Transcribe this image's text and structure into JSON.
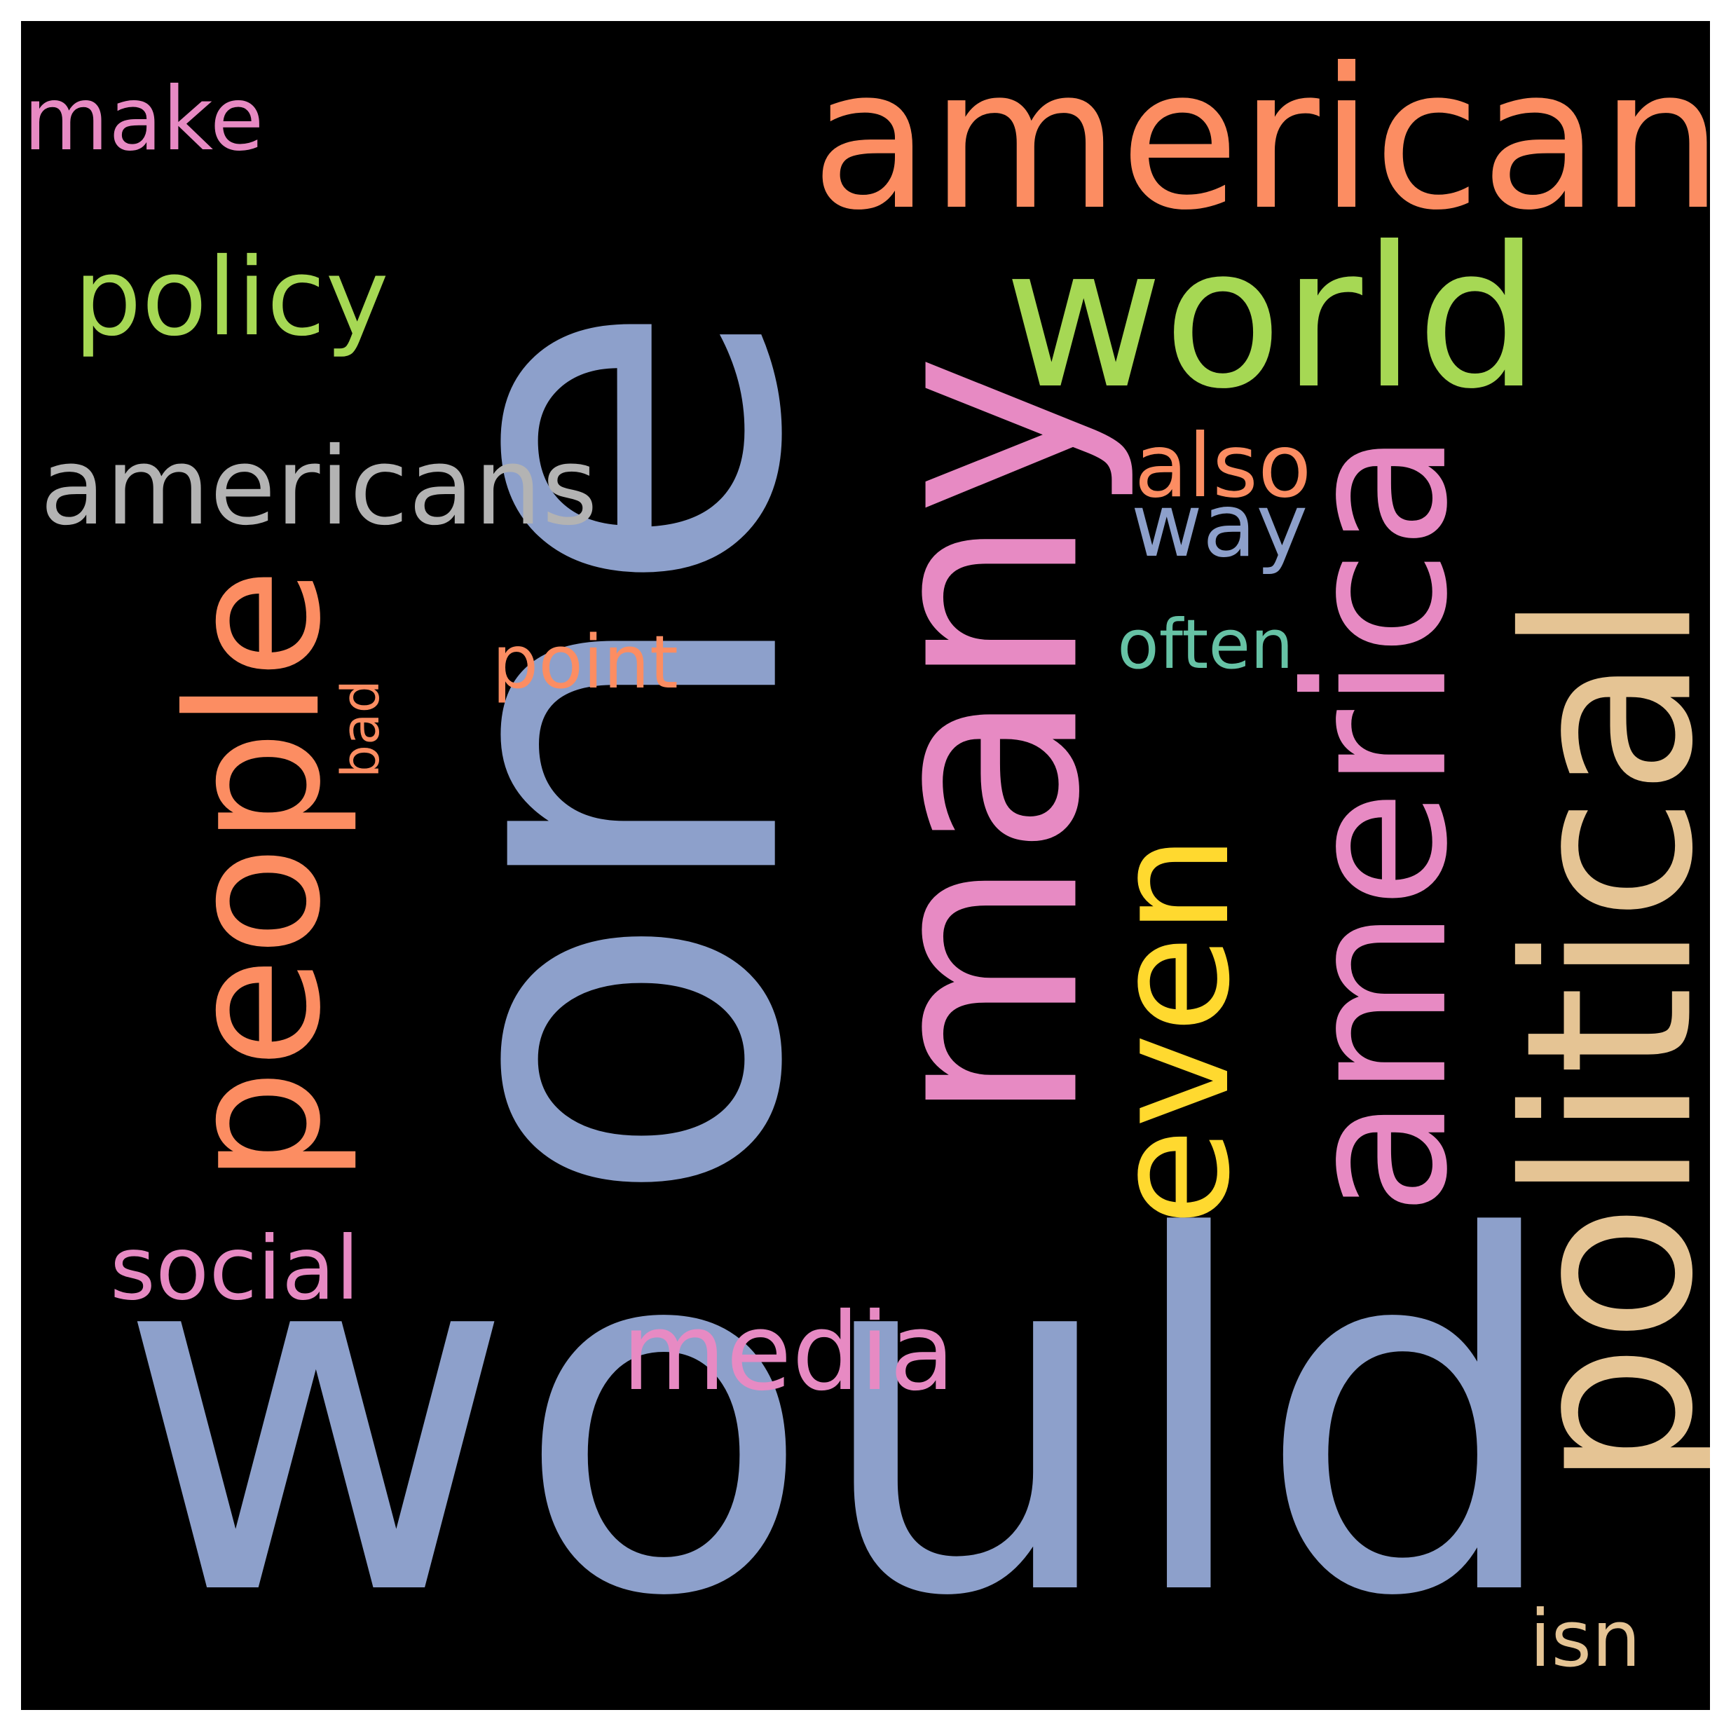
{
  "palette": {
    "background": "#000000",
    "frame": "#ffffff",
    "blue": "#8da0cb",
    "pink": "#e78ac3",
    "orange": "#fc8d62",
    "green": "#a6d854",
    "yellow": "#ffd92f",
    "tan": "#e5c494",
    "gray": "#b3b3b3",
    "teal": "#66c2a5"
  },
  "words": [
    {
      "id": "one",
      "text": "one",
      "color": "#8da0cb",
      "vertical": true
    },
    {
      "id": "would",
      "text": "would",
      "color": "#8da0cb",
      "vertical": false
    },
    {
      "id": "many",
      "text": "many",
      "color": "#e78ac3",
      "vertical": true
    },
    {
      "id": "american",
      "text": "american",
      "color": "#fc8d62",
      "vertical": false
    },
    {
      "id": "world",
      "text": "world",
      "color": "#a6d854",
      "vertical": false
    },
    {
      "id": "political",
      "text": "political",
      "color": "#e5c494",
      "vertical": true
    },
    {
      "id": "america",
      "text": "america",
      "color": "#e78ac3",
      "vertical": true
    },
    {
      "id": "people",
      "text": "people",
      "color": "#fc8d62",
      "vertical": true
    },
    {
      "id": "even",
      "text": "even",
      "color": "#ffd92f",
      "vertical": true
    },
    {
      "id": "americans",
      "text": "americans",
      "color": "#b3b3b3",
      "vertical": false
    },
    {
      "id": "policy",
      "text": "policy",
      "color": "#a6d854",
      "vertical": false
    },
    {
      "id": "make",
      "text": "make",
      "color": "#e78ac3",
      "vertical": false
    },
    {
      "id": "social",
      "text": "social",
      "color": "#e78ac3",
      "vertical": false
    },
    {
      "id": "media",
      "text": "media",
      "color": "#e78ac3",
      "vertical": false
    },
    {
      "id": "also",
      "text": "also",
      "color": "#fc8d62",
      "vertical": false
    },
    {
      "id": "way",
      "text": "way",
      "color": "#8da0cb",
      "vertical": false
    },
    {
      "id": "often",
      "text": "often",
      "color": "#66c2a5",
      "vertical": false
    },
    {
      "id": "point",
      "text": "point",
      "color": "#fc8d62",
      "vertical": false
    },
    {
      "id": "bad",
      "text": "bad",
      "color": "#fc8d62",
      "vertical": true
    },
    {
      "id": "isn",
      "text": "isn",
      "color": "#e5c494",
      "vertical": false
    }
  ]
}
